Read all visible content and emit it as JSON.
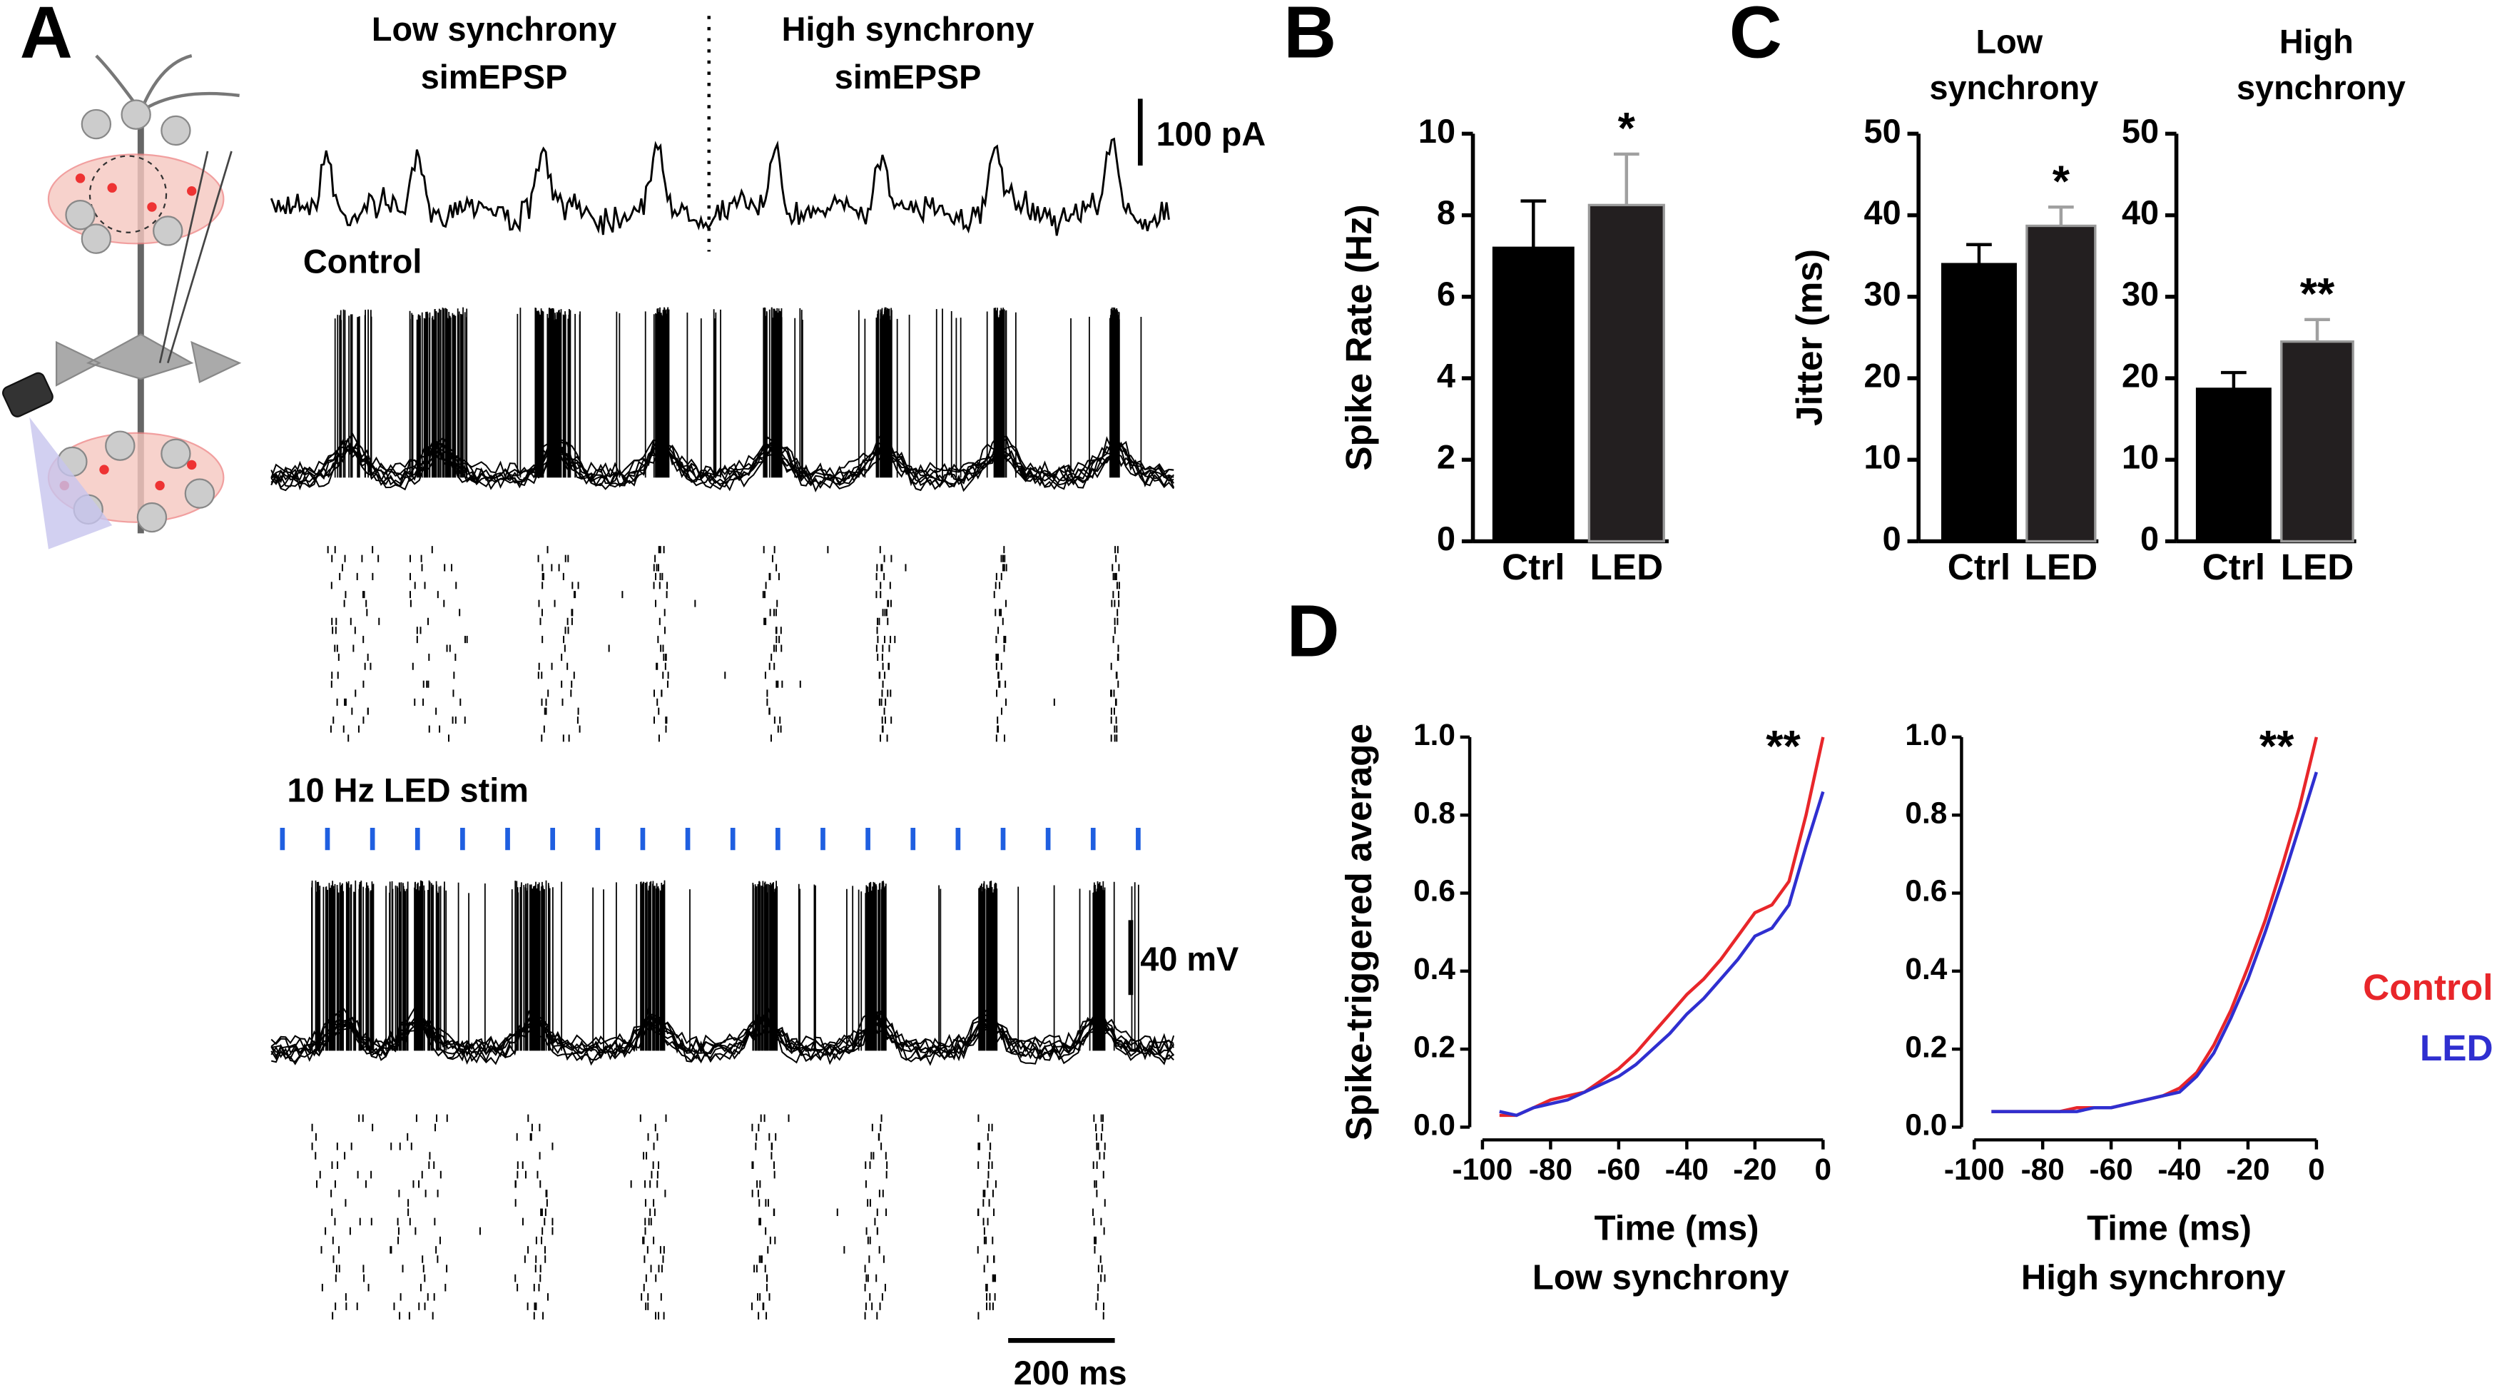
{
  "panels": {
    "a": "A",
    "b": "B",
    "c": "C",
    "d": "D"
  },
  "panel_a": {
    "low_label": [
      "Low synchrony",
      "simEPSP"
    ],
    "high_label": [
      "High synchrony",
      "simEPSP"
    ],
    "current_scale": "100 pA",
    "control_label": "Control",
    "led_label": "10 Hz LED stim",
    "voltage_scale": "40 mV",
    "time_scale": "200 ms"
  },
  "chart_data": [
    {
      "type": "bar",
      "ylabel": "Spike Rate (Hz)",
      "categories": [
        "Ctrl",
        "LED"
      ],
      "values": [
        7.2,
        8.25
      ],
      "errors": [
        1.15,
        1.25
      ],
      "colors": [
        "#000000",
        "#231f20"
      ],
      "error_colors": [
        "#000000",
        "#a0a0a0"
      ],
      "annotation": "*",
      "ylim": [
        0,
        10
      ],
      "yticks": [
        0,
        2,
        4,
        6,
        8,
        10
      ]
    },
    {
      "type": "bar",
      "title": "Low synchrony",
      "ylabel": "Jitter (ms)",
      "categories": [
        "Ctrl",
        "LED"
      ],
      "values": [
        34,
        38.7
      ],
      "errors": [
        2.4,
        2.3
      ],
      "colors": [
        "#000000",
        "#231f20"
      ],
      "error_colors": [
        "#000000",
        "#a0a0a0"
      ],
      "annotation": "*",
      "ylim": [
        0,
        50
      ],
      "yticks": [
        0,
        10,
        20,
        30,
        40,
        50
      ]
    },
    {
      "type": "bar",
      "title": "High synchrony",
      "categories": [
        "Ctrl",
        "LED"
      ],
      "values": [
        18.7,
        24.5
      ],
      "errors": [
        2.0,
        2.7
      ],
      "colors": [
        "#000000",
        "#231f20"
      ],
      "error_colors": [
        "#000000",
        "#a0a0a0"
      ],
      "annotation": "**",
      "ylim": [
        0,
        50
      ],
      "yticks": [
        0,
        10,
        20,
        30,
        40,
        50
      ]
    },
    {
      "type": "line",
      "ylabel": "Spike-triggered average",
      "xlabel": "Time (ms)",
      "subtitle": "Low synchrony",
      "annotation": "**",
      "x": [
        -95,
        -90,
        -85,
        -80,
        -75,
        -70,
        -65,
        -60,
        -55,
        -50,
        -45,
        -40,
        -35,
        -30,
        -25,
        -20,
        -15,
        -10,
        -5,
        0
      ],
      "series": [
        {
          "name": "Control",
          "color": "#e8262a",
          "values": [
            0.03,
            0.03,
            0.05,
            0.07,
            0.08,
            0.09,
            0.12,
            0.15,
            0.19,
            0.24,
            0.29,
            0.34,
            0.38,
            0.43,
            0.49,
            0.55,
            0.57,
            0.63,
            0.8,
            1.0
          ]
        },
        {
          "name": "LED",
          "color": "#2f2fd0",
          "values": [
            0.04,
            0.03,
            0.05,
            0.06,
            0.07,
            0.09,
            0.11,
            0.13,
            0.16,
            0.2,
            0.24,
            0.29,
            0.33,
            0.38,
            0.43,
            0.49,
            0.51,
            0.57,
            0.72,
            0.86
          ]
        }
      ],
      "xlim": [
        -100,
        0
      ],
      "xticks": [
        -100,
        -80,
        -60,
        -40,
        -20,
        0
      ],
      "ylim": [
        0,
        1
      ],
      "yticks": [
        {
          "value": 0,
          "label": "0.0"
        },
        0.2,
        0.4,
        0.6,
        0.8,
        {
          "value": 1,
          "label": "1.0"
        }
      ]
    },
    {
      "type": "line",
      "xlabel": "Time (ms)",
      "subtitle": "High synchrony",
      "annotation": "**",
      "legend": "right",
      "x": [
        -95,
        -90,
        -85,
        -80,
        -75,
        -70,
        -65,
        -60,
        -55,
        -50,
        -45,
        -40,
        -35,
        -30,
        -25,
        -20,
        -15,
        -10,
        -5,
        0
      ],
      "series": [
        {
          "name": "Control",
          "color": "#e8262a",
          "values": [
            0.04,
            0.04,
            0.04,
            0.04,
            0.04,
            0.05,
            0.05,
            0.05,
            0.06,
            0.07,
            0.08,
            0.1,
            0.14,
            0.21,
            0.3,
            0.41,
            0.53,
            0.67,
            0.82,
            1.0
          ]
        },
        {
          "name": "LED",
          "color": "#2f2fd0",
          "values": [
            0.04,
            0.04,
            0.04,
            0.04,
            0.04,
            0.04,
            0.05,
            0.05,
            0.06,
            0.07,
            0.08,
            0.09,
            0.13,
            0.19,
            0.28,
            0.38,
            0.5,
            0.63,
            0.77,
            0.91
          ]
        }
      ],
      "xlim": [
        -100,
        0
      ],
      "xticks": [
        -100,
        -80,
        -60,
        -40,
        -20,
        0
      ],
      "ylim": [
        0,
        1
      ],
      "yticks": [
        {
          "value": 0,
          "label": "0.0"
        },
        0.2,
        0.4,
        0.6,
        0.8,
        {
          "value": 1,
          "label": "1.0"
        }
      ]
    }
  ]
}
